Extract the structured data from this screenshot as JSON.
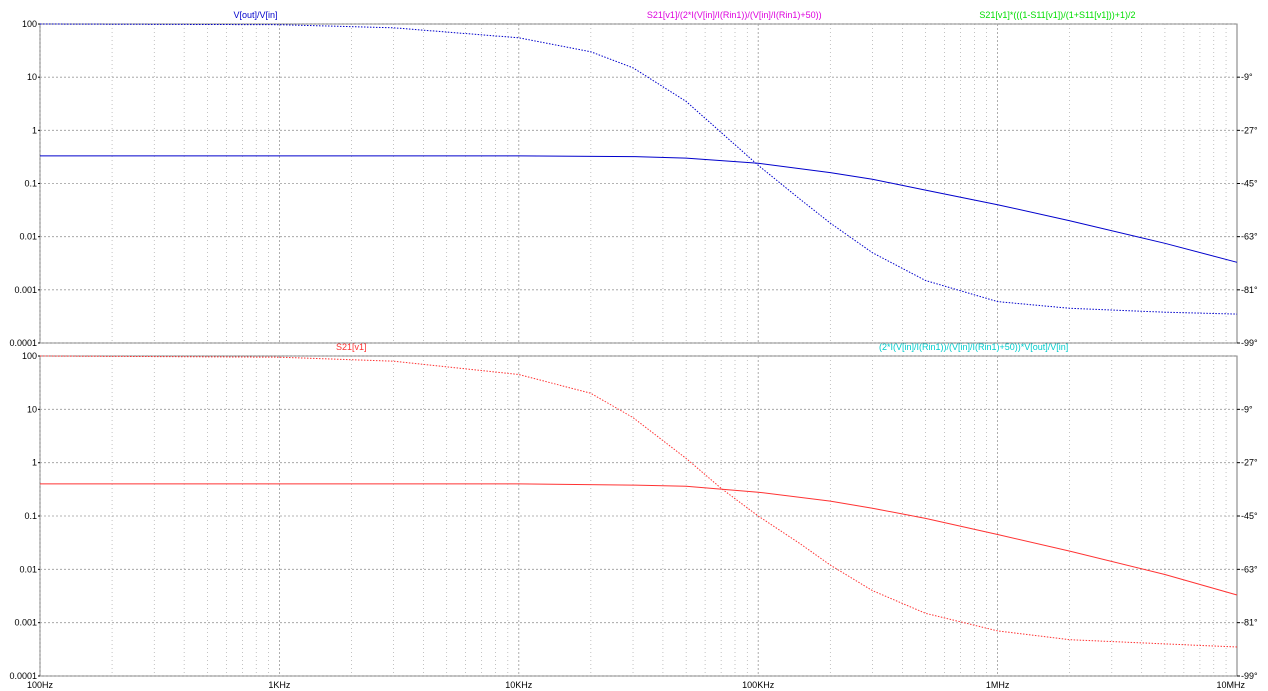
{
  "colors": {
    "blue_trace": "#0000cc",
    "magenta_label": "#dd00dd",
    "green_label": "#00dd00",
    "red_trace": "#ff3333",
    "cyan_label": "#00cccc",
    "grid": "#9a9a9a",
    "frame": "#7a7a7a"
  },
  "chart_data": [
    {
      "type": "line",
      "title_labels": [
        {
          "text": "V[out]/V[in]",
          "color": "#0000cc"
        },
        {
          "text": "S21[v1]/(2*I(V[in]/I(Rin1))/(V[in]/I(Rin1)+50))",
          "color": "#dd00dd"
        },
        {
          "text": "S21[v1]*(((1-S11[v1])/(1+S11[v1]))+1)/2",
          "color": "#00dd00"
        }
      ],
      "x_scale": "log",
      "y_scale": "log",
      "xlim": [
        100,
        10000000
      ],
      "ylim": [
        0.0001,
        100
      ],
      "y_ticks": [
        "100",
        "10",
        "1",
        "0.1",
        "0.01",
        "0.001",
        "0.0001"
      ],
      "y2_ticks": [
        "-9°",
        "-27°",
        "-45°",
        "-63°",
        "-81°",
        "-99°"
      ],
      "grid": true,
      "series": [
        {
          "name": "V[out]/V[in]",
          "style": "solid",
          "color": "#0000cc",
          "x": [
            100,
            300,
            1000,
            3000,
            10000,
            30000,
            50000,
            100000,
            200000,
            300000,
            500000,
            1000000,
            2000000,
            5000000,
            10000000
          ],
          "y": [
            0.33,
            0.33,
            0.33,
            0.33,
            0.33,
            0.32,
            0.3,
            0.24,
            0.16,
            0.12,
            0.075,
            0.04,
            0.02,
            0.0075,
            0.0033
          ]
        },
        {
          "name": "V[out]/V[in]",
          "style": "dotted",
          "color": "#0000cc",
          "x": [
            100,
            1000,
            3000,
            10000,
            20000,
            30000,
            50000,
            100000,
            150000,
            200000,
            300000,
            500000,
            1000000,
            2000000,
            5000000,
            10000000
          ],
          "y": [
            100,
            97,
            85,
            55,
            30,
            15,
            3.5,
            0.22,
            0.05,
            0.018,
            0.005,
            0.0015,
            0.0006,
            0.00045,
            0.00038,
            0.00035
          ]
        }
      ]
    },
    {
      "type": "line",
      "title_labels": [
        {
          "text": "S21[v1]",
          "color": "#ff3333"
        },
        {
          "text": "(2*I(V[in]/I(Rin1))/(V[in]/I(Rin1)+50))*V[out]/V[in]",
          "color": "#00cccc"
        }
      ],
      "x_scale": "log",
      "y_scale": "log",
      "xlim": [
        100,
        10000000
      ],
      "ylim": [
        0.0001,
        100
      ],
      "x_ticks": [
        "100Hz",
        "1KHz",
        "10KHz",
        "100KHz",
        "1MHz",
        "10MHz"
      ],
      "y_ticks": [
        "100",
        "10",
        "1",
        "0.1",
        "0.01",
        "0.001",
        "0.0001"
      ],
      "y2_ticks": [
        "-9°",
        "-27°",
        "-45°",
        "-63°",
        "-81°",
        "-99°"
      ],
      "grid": true,
      "series": [
        {
          "name": "S21[v1]",
          "style": "solid",
          "color": "#ff3333",
          "x": [
            100,
            300,
            1000,
            3000,
            10000,
            30000,
            50000,
            100000,
            200000,
            300000,
            500000,
            1000000,
            2000000,
            5000000,
            10000000
          ],
          "y": [
            0.4,
            0.4,
            0.4,
            0.4,
            0.4,
            0.38,
            0.36,
            0.28,
            0.19,
            0.14,
            0.09,
            0.045,
            0.022,
            0.008,
            0.0033
          ]
        },
        {
          "name": "S21[v1]",
          "style": "dotted",
          "color": "#ff3333",
          "x": [
            100,
            1000,
            3000,
            10000,
            20000,
            30000,
            50000,
            70000,
            100000,
            150000,
            200000,
            300000,
            500000,
            1000000,
            2000000,
            5000000,
            10000000
          ],
          "y": [
            100,
            95,
            80,
            45,
            20,
            7,
            1.2,
            0.33,
            0.1,
            0.03,
            0.012,
            0.004,
            0.0015,
            0.0007,
            0.00048,
            0.0004,
            0.00035
          ]
        }
      ]
    }
  ]
}
